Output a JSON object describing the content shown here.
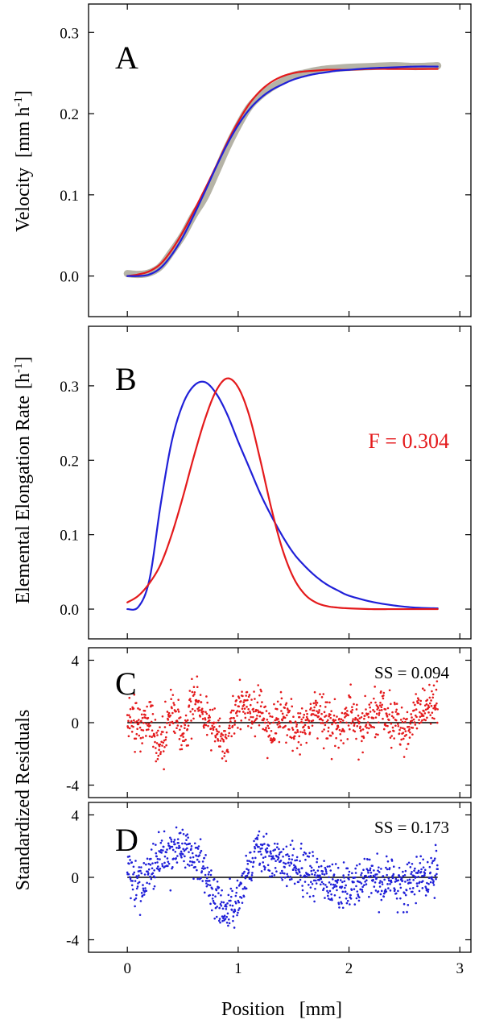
{
  "chart_data": [
    {
      "panel": "A",
      "type": "line",
      "ylabel": "Velocity",
      "yunit_prefix": "[mm h",
      "yunit_exp": "-1",
      "yunit_suffix": "]",
      "xlim": [
        -0.35,
        3.1
      ],
      "ylim": [
        -0.05,
        0.335
      ],
      "yticks": [
        0.0,
        0.1,
        0.2,
        0.3
      ],
      "yticklabels": [
        "0.0",
        "0.1",
        "0.2",
        "0.3"
      ],
      "colors": {
        "data": "#b5b3a6",
        "red": "#e41a1c",
        "blue": "#2020d8"
      },
      "series": [
        {
          "name": "data",
          "color": "#b5b3a6",
          "x": [
            0.0,
            0.1,
            0.2,
            0.3,
            0.4,
            0.5,
            0.6,
            0.7,
            0.8,
            0.9,
            1.0,
            1.1,
            1.2,
            1.3,
            1.4,
            1.5,
            1.6,
            1.7,
            1.8,
            1.9,
            2.0,
            2.2,
            2.4,
            2.6,
            2.8
          ],
          "y": [
            0.003,
            0.002,
            0.004,
            0.012,
            0.03,
            0.05,
            0.075,
            0.097,
            0.127,
            0.158,
            0.185,
            0.208,
            0.222,
            0.232,
            0.24,
            0.247,
            0.25,
            0.253,
            0.255,
            0.256,
            0.257,
            0.258,
            0.259,
            0.258,
            0.259
          ]
        },
        {
          "name": "red fit",
          "color": "#e41a1c",
          "x": [
            0.0,
            0.1,
            0.2,
            0.3,
            0.4,
            0.5,
            0.6,
            0.7,
            0.8,
            0.9,
            1.0,
            1.1,
            1.2,
            1.3,
            1.4,
            1.5,
            1.6,
            1.7,
            1.8,
            1.9,
            2.0,
            2.2,
            2.4,
            2.6,
            2.8
          ],
          "y": [
            0.0,
            0.002,
            0.006,
            0.015,
            0.032,
            0.054,
            0.08,
            0.107,
            0.135,
            0.164,
            0.19,
            0.212,
            0.228,
            0.239,
            0.246,
            0.25,
            0.252,
            0.253,
            0.254,
            0.254,
            0.254,
            0.255,
            0.255,
            0.255,
            0.255
          ]
        },
        {
          "name": "blue fit",
          "color": "#2020d8",
          "x": [
            0.0,
            0.1,
            0.2,
            0.3,
            0.4,
            0.5,
            0.6,
            0.7,
            0.8,
            0.9,
            1.0,
            1.1,
            1.2,
            1.3,
            1.4,
            1.5,
            1.6,
            1.7,
            1.8,
            1.9,
            2.0,
            2.2,
            2.4,
            2.6,
            2.8
          ],
          "y": [
            0.0,
            0.0,
            0.002,
            0.01,
            0.026,
            0.048,
            0.075,
            0.104,
            0.134,
            0.162,
            0.186,
            0.205,
            0.219,
            0.229,
            0.236,
            0.242,
            0.246,
            0.249,
            0.251,
            0.253,
            0.254,
            0.256,
            0.257,
            0.258,
            0.258
          ]
        }
      ]
    },
    {
      "panel": "B",
      "type": "line",
      "ylabel": "Elemental Elongation Rate",
      "yunit_prefix": "[h",
      "yunit_exp": "-1",
      "yunit_suffix": "]",
      "xlim": [
        -0.35,
        3.1
      ],
      "ylim": [
        -0.04,
        0.38
      ],
      "yticks": [
        0.0,
        0.1,
        0.2,
        0.3
      ],
      "yticklabels": [
        "0.0",
        "0.1",
        "0.2",
        "0.3"
      ],
      "annotation": "F = 0.304",
      "annotation_color": "#e41a1c",
      "series": [
        {
          "name": "blue",
          "color": "#2020d8",
          "x": [
            0.0,
            0.1,
            0.2,
            0.3,
            0.4,
            0.5,
            0.6,
            0.7,
            0.8,
            0.9,
            1.0,
            1.1,
            1.2,
            1.3,
            1.4,
            1.5,
            1.6,
            1.7,
            1.8,
            1.9,
            2.0,
            2.2,
            2.4,
            2.6,
            2.8
          ],
          "y": [
            0.0,
            0.003,
            0.04,
            0.14,
            0.225,
            0.275,
            0.3,
            0.305,
            0.29,
            0.262,
            0.225,
            0.19,
            0.155,
            0.125,
            0.098,
            0.075,
            0.058,
            0.044,
            0.033,
            0.025,
            0.018,
            0.01,
            0.005,
            0.002,
            0.001
          ]
        },
        {
          "name": "red",
          "color": "#e41a1c",
          "x": [
            0.0,
            0.1,
            0.2,
            0.3,
            0.4,
            0.5,
            0.6,
            0.7,
            0.8,
            0.9,
            1.0,
            1.1,
            1.2,
            1.3,
            1.4,
            1.5,
            1.6,
            1.7,
            1.8,
            1.9,
            2.0,
            2.2,
            2.4,
            2.6,
            2.8
          ],
          "y": [
            0.009,
            0.018,
            0.035,
            0.06,
            0.1,
            0.15,
            0.205,
            0.255,
            0.293,
            0.31,
            0.298,
            0.26,
            0.2,
            0.135,
            0.08,
            0.042,
            0.02,
            0.009,
            0.004,
            0.002,
            0.001,
            0.0,
            0.0,
            0.0,
            0.0
          ]
        }
      ]
    },
    {
      "panel": "C",
      "type": "scatter",
      "xlim": [
        -0.35,
        3.1
      ],
      "ylim": [
        -4.8,
        4.8
      ],
      "yticks": [
        -4,
        0,
        4
      ],
      "yticklabels": [
        "-4",
        "0",
        "4"
      ],
      "annotation": "SS = 0.094",
      "series": [
        {
          "name": "residuals",
          "color": "#e41a1c",
          "x": [
            0.0,
            0.1,
            0.2,
            0.3,
            0.4,
            0.5,
            0.6,
            0.7,
            0.8,
            0.9,
            1.0,
            1.1,
            1.2,
            1.3,
            1.4,
            1.5,
            1.6,
            1.7,
            1.8,
            1.9,
            2.0,
            2.1,
            2.2,
            2.3,
            2.4,
            2.5,
            2.6,
            2.7,
            2.8
          ],
          "y": [
            0.5,
            -0.3,
            0.3,
            -1.2,
            0.6,
            -1.0,
            1.5,
            0.4,
            -0.7,
            -1.5,
            1.2,
            0.6,
            1.0,
            -0.6,
            0.8,
            -0.4,
            -0.2,
            0.7,
            0.2,
            -0.3,
            0.6,
            -0.5,
            0.4,
            0.8,
            0.2,
            -0.6,
            0.6,
            0.9,
            1.2
          ]
        }
      ]
    },
    {
      "panel": "D",
      "type": "scatter",
      "xlim": [
        -0.35,
        3.1
      ],
      "ylim": [
        -4.8,
        4.8
      ],
      "yticks": [
        -4,
        0,
        4
      ],
      "yticklabels": [
        "-4",
        "0",
        "4"
      ],
      "xticks": [
        0,
        1,
        2,
        3
      ],
      "xticklabels": [
        "0",
        "1",
        "2",
        "3"
      ],
      "annotation": "SS = 0.173",
      "series": [
        {
          "name": "residuals",
          "color": "#2020d8",
          "x": [
            0.0,
            0.1,
            0.2,
            0.3,
            0.4,
            0.5,
            0.6,
            0.7,
            0.8,
            0.9,
            1.0,
            1.1,
            1.2,
            1.3,
            1.4,
            1.5,
            1.6,
            1.7,
            1.8,
            1.9,
            2.0,
            2.1,
            2.2,
            2.3,
            2.4,
            2.5,
            2.6,
            2.7,
            2.8
          ],
          "y": [
            0.7,
            -0.5,
            0.6,
            1.1,
            1.6,
            2.0,
            1.7,
            0.2,
            -1.5,
            -2.2,
            -1.4,
            0.6,
            1.8,
            1.4,
            1.1,
            0.8,
            0.5,
            0.3,
            -0.1,
            -0.6,
            -0.4,
            -0.3,
            0.1,
            -0.4,
            -0.2,
            -0.6,
            0.1,
            0.0,
            0.4
          ]
        }
      ]
    }
  ],
  "shared": {
    "xlabel": "Position",
    "xunit": "[mm]",
    "residual_ylabel": "Standardized Residuals"
  }
}
